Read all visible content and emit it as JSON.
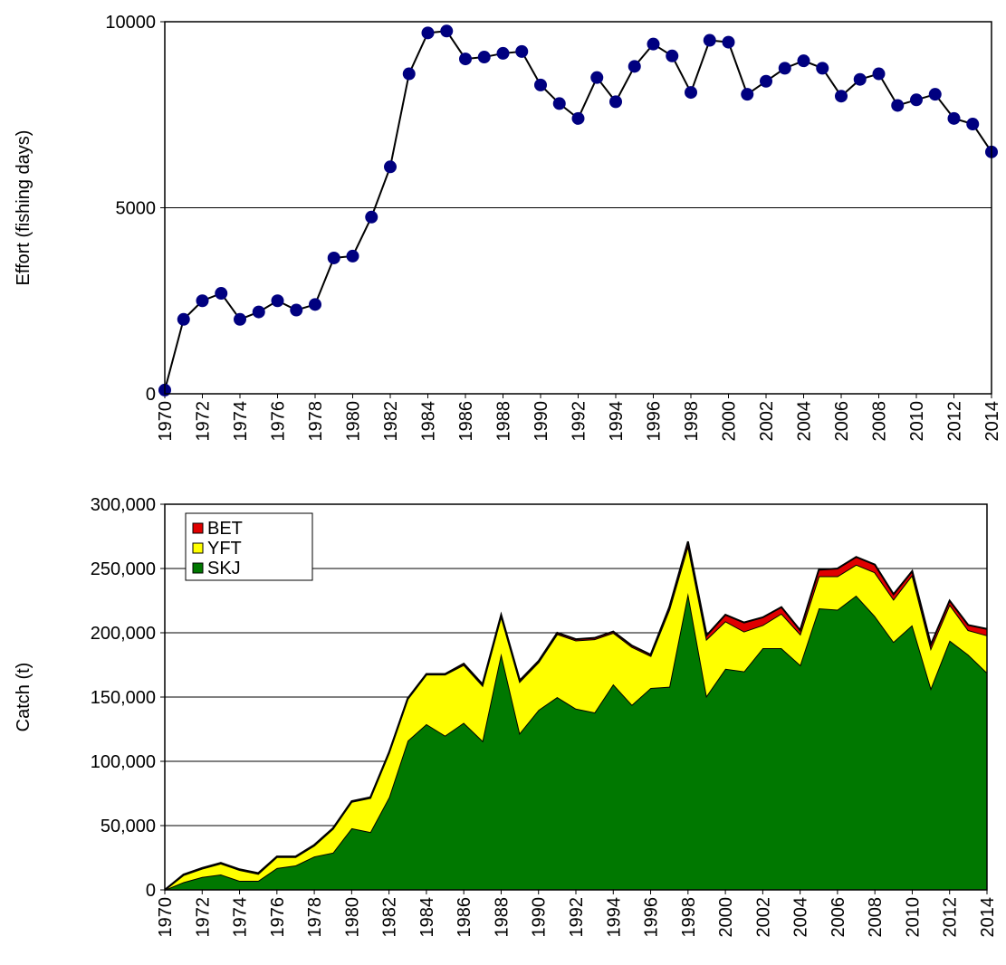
{
  "chart_data": [
    {
      "type": "line",
      "ylabel": "Effort (fishing days)",
      "x": [
        1970,
        1971,
        1972,
        1973,
        1974,
        1975,
        1976,
        1977,
        1978,
        1979,
        1980,
        1981,
        1982,
        1983,
        1984,
        1985,
        1986,
        1987,
        1988,
        1989,
        1990,
        1991,
        1992,
        1993,
        1994,
        1995,
        1996,
        1997,
        1998,
        1999,
        2000,
        2001,
        2002,
        2003,
        2004,
        2005,
        2006,
        2007,
        2008,
        2009,
        2010,
        2011,
        2012,
        2013,
        2014
      ],
      "values": [
        100,
        2000,
        2500,
        2700,
        2000,
        2200,
        2500,
        2250,
        2400,
        3650,
        3700,
        4750,
        6100,
        8600,
        9700,
        9750,
        9000,
        9050,
        9150,
        9200,
        8300,
        7800,
        7400,
        8500,
        7850,
        8800,
        9400,
        9080,
        8100,
        9500,
        9450,
        8050,
        8400,
        8750,
        8950,
        8750,
        8000,
        8450,
        8600,
        7750,
        7900,
        8050,
        7400,
        7250,
        6500
      ],
      "color": "#000080",
      "line_color": "#000000",
      "xlim": [
        1970,
        2014
      ],
      "xticks": [
        1970,
        1972,
        1974,
        1976,
        1978,
        1980,
        1982,
        1984,
        1986,
        1988,
        1990,
        1992,
        1994,
        1996,
        1998,
        2000,
        2002,
        2004,
        2006,
        2008,
        2010,
        2012,
        2014
      ],
      "ylim": [
        0,
        10000
      ],
      "yticks": [
        0,
        5000,
        10000
      ],
      "grid": true
    },
    {
      "type": "area",
      "stacked": true,
      "ylabel": "Catch (t)",
      "x": [
        1970,
        1971,
        1972,
        1973,
        1974,
        1975,
        1976,
        1977,
        1978,
        1979,
        1980,
        1981,
        1982,
        1983,
        1984,
        1985,
        1986,
        1987,
        1988,
        1989,
        1990,
        1991,
        1992,
        1993,
        1994,
        1995,
        1996,
        1997,
        1998,
        1999,
        2000,
        2001,
        2002,
        2003,
        2004,
        2005,
        2006,
        2007,
        2008,
        2009,
        2010,
        2011,
        2012,
        2013,
        2014
      ],
      "series": [
        {
          "name": "SKJ",
          "color": "#007800",
          "values": [
            0,
            6000,
            10000,
            12000,
            7000,
            7000,
            17000,
            19000,
            26000,
            29000,
            48000,
            45000,
            72000,
            116000,
            129000,
            120000,
            130000,
            116000,
            184000,
            122000,
            140000,
            150000,
            141000,
            138000,
            160000,
            144000,
            157000,
            158000,
            231000,
            151000,
            172000,
            170000,
            188000,
            188000,
            175000,
            219000,
            218000,
            229000,
            213000,
            193000,
            206000,
            157000,
            194000,
            183000,
            169000
          ]
        },
        {
          "name": "YFT",
          "color": "#ffff00",
          "values": [
            0,
            5500,
            6500,
            8500,
            8500,
            5500,
            8500,
            6500,
            8500,
            18500,
            20500,
            26500,
            34500,
            32500,
            38500,
            47500,
            45000,
            43000,
            29000,
            40000,
            37000,
            49000,
            53000,
            57000,
            40000,
            45000,
            25000,
            60000,
            37000,
            44000,
            37000,
            31000,
            18000,
            27000,
            24000,
            25000,
            26000,
            24000,
            34000,
            33000,
            39000,
            31000,
            28000,
            19000,
            29000
          ]
        },
        {
          "name": "BET",
          "color": "#e00000",
          "values": [
            0,
            500,
            500,
            500,
            500,
            500,
            500,
            500,
            500,
            500,
            500,
            500,
            500,
            500,
            500,
            500,
            1000,
            1000,
            1000,
            1000,
            1000,
            1000,
            1000,
            1000,
            1000,
            1000,
            1000,
            2000,
            3000,
            3000,
            5000,
            7000,
            6000,
            5000,
            3000,
            5000,
            6000,
            6000,
            6000,
            4000,
            3000,
            3000,
            3000,
            4000,
            5000
          ]
        }
      ],
      "xlim": [
        1970,
        2014
      ],
      "xticks": [
        1970,
        1972,
        1974,
        1976,
        1978,
        1980,
        1982,
        1984,
        1986,
        1988,
        1990,
        1992,
        1994,
        1996,
        1998,
        2000,
        2002,
        2004,
        2006,
        2008,
        2010,
        2012,
        2014
      ],
      "ylim": [
        0,
        300000
      ],
      "yticks": [
        {
          "value": 0,
          "label": "0"
        },
        {
          "value": 50000,
          "label": "50,000"
        },
        {
          "value": 100000,
          "label": "100,000"
        },
        {
          "value": 150000,
          "label": "150,000"
        },
        {
          "value": 200000,
          "label": "200,000"
        },
        {
          "value": 250000,
          "label": "250,000"
        },
        {
          "value": 300000,
          "label": "300,000"
        }
      ],
      "grid": true,
      "legend": "upper left"
    }
  ]
}
